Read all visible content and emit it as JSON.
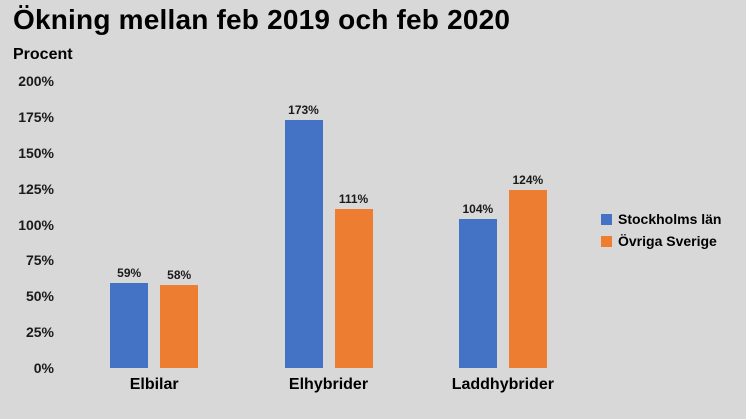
{
  "chart_data": {
    "type": "bar",
    "title": "Ökning mellan feb 2019 och feb 2020",
    "ylabel": "Procent",
    "xlabel": "",
    "categories": [
      "Elbilar",
      "Elhybrider",
      "Laddhybrider"
    ],
    "series": [
      {
        "name": "Stockholms län",
        "color": "#4472C4",
        "values": [
          59,
          173,
          104
        ],
        "labels": [
          "59%",
          "173%",
          "104%"
        ]
      },
      {
        "name": "Övriga Sverige",
        "color": "#ED7D31",
        "values": [
          58,
          111,
          124
        ],
        "labels": [
          "58%",
          "111%",
          "124%"
        ]
      }
    ],
    "ylim": [
      0,
      200
    ],
    "ytick_step": 25,
    "ytick_labels": [
      "0%",
      "25%",
      "50%",
      "75%",
      "100%",
      "125%",
      "150%",
      "175%",
      "200%"
    ],
    "unit": "%",
    "grid": false,
    "legend_position": "right",
    "background_color": "#D8D8D8"
  }
}
